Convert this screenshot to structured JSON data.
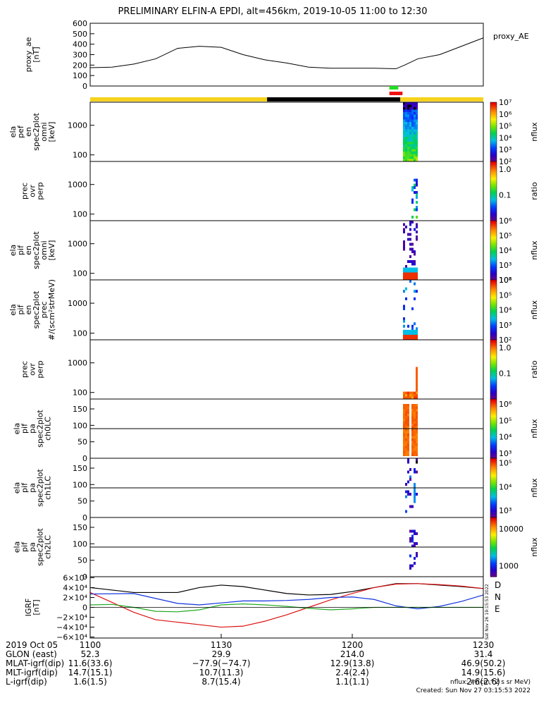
{
  "title": "PRELIMINARY ELFIN-A EPDI, alt=456km, 2019-10-05 11:00 to 12:30",
  "colors": {
    "orbit_day": "#f5d21e",
    "orbit_night": "#000000",
    "marker_green": "#22dd22",
    "marker_red": "#ee1111",
    "bx_color": "#dd1111",
    "by_color": "#1133dd",
    "bz_color": "#22aa22",
    "bt_color": "#000000"
  },
  "chart_data": [
    {
      "type": "line",
      "id": "proxy_ae",
      "ylabel_lines": [
        "proxy_ae",
        "[nT]"
      ],
      "legend": "proxy_AE",
      "ylim": [
        0,
        600
      ],
      "yticks": [
        "0",
        "100",
        "200",
        "300",
        "400",
        "500",
        "600"
      ],
      "x": [
        0,
        5,
        10,
        15,
        20,
        25,
        30,
        35,
        40,
        45,
        50,
        55,
        60,
        65,
        70,
        72,
        75,
        80,
        85,
        90
      ],
      "y": [
        175,
        180,
        210,
        260,
        360,
        380,
        370,
        300,
        250,
        220,
        180,
        170,
        170,
        170,
        165,
        200,
        260,
        300,
        380,
        460
      ]
    },
    {
      "type": "heatmap",
      "id": "pef_en",
      "ylabel_lines": [
        "ela",
        "pef",
        "en",
        "spec2plot",
        "omni",
        "[keV]"
      ],
      "yscale": "log",
      "ylim": [
        60,
        6000
      ],
      "yticks": [
        "100",
        "1000"
      ],
      "colorbar": {
        "label": "nflux",
        "ticks": [
          "10²",
          "10³",
          "10⁴",
          "10⁵",
          "10⁶",
          "10⁷"
        ],
        "range_log10": [
          2,
          7
        ]
      }
    },
    {
      "type": "heatmap",
      "id": "pef_ratio",
      "ylabel_lines": [
        "prec",
        "ovr",
        "perp"
      ],
      "yscale": "log",
      "ylim": [
        60,
        6000
      ],
      "yticks": [
        "100",
        "1000"
      ],
      "colorbar": {
        "label": "ratio",
        "ticks": [
          "0.1",
          "1.0"
        ],
        "range_log10": [
          -2,
          0.3
        ]
      }
    },
    {
      "type": "heatmap",
      "id": "pif_en",
      "ylabel_lines": [
        "ela",
        "pif",
        "en",
        "spec2plot",
        "omni",
        "[keV]"
      ],
      "yscale": "log",
      "ylim": [
        60,
        6000
      ],
      "yticks": [
        "100",
        "1000"
      ],
      "colorbar": {
        "label": "nflux",
        "ticks": [
          "10²",
          "10³",
          "10⁴",
          "10⁵",
          "10⁶"
        ],
        "range_log10": [
          2,
          6
        ]
      }
    },
    {
      "type": "heatmap",
      "id": "pif_prec",
      "ylabel_lines": [
        "ela",
        "pif",
        "en",
        "spec2plot",
        "prec",
        "#/(scm²strMeV)"
      ],
      "yscale": "log",
      "ylim": [
        60,
        6000
      ],
      "yticks": [
        "100",
        "1000"
      ],
      "colorbar": {
        "label": "nflux",
        "ticks": [
          "10²",
          "10³",
          "10⁴",
          "10⁵",
          "10⁶"
        ],
        "range_log10": [
          2,
          6
        ]
      }
    },
    {
      "type": "heatmap",
      "id": "pif_ratio",
      "ylabel_lines": [
        "prec",
        "ovr",
        "perp"
      ],
      "yscale": "log",
      "ylim": [
        60,
        6000
      ],
      "yticks": [
        "100",
        "1000"
      ],
      "colorbar": {
        "label": "ratio",
        "ticks": [
          "0.1",
          "1.0"
        ],
        "range_log10": [
          -2,
          0.3
        ]
      }
    },
    {
      "type": "heatmap",
      "id": "pa_ch0",
      "ylabel_lines": [
        "ela",
        "pif",
        "pa",
        "spec2plot",
        "ch0LC"
      ],
      "ylim": [
        0,
        180
      ],
      "yticks": [
        "0",
        "50",
        "100",
        "150"
      ],
      "colorbar": {
        "label": "nflux",
        "ticks": [
          "10³",
          "10⁴",
          "10⁵",
          "10⁶"
        ],
        "range_log10": [
          2.7,
          6.3
        ]
      }
    },
    {
      "type": "heatmap",
      "id": "pa_ch1",
      "ylabel_lines": [
        "ela",
        "pif",
        "pa",
        "spec2plot",
        "ch1LC"
      ],
      "ylim": [
        0,
        180
      ],
      "yticks": [
        "0",
        "50",
        "100",
        "150"
      ],
      "colorbar": {
        "label": "nflux",
        "ticks": [
          "10³",
          "10⁴",
          "10⁵"
        ],
        "range_log10": [
          2.7,
          5.2
        ]
      }
    },
    {
      "type": "heatmap",
      "id": "pa_ch2",
      "ylabel_lines": [
        "ela",
        "pif",
        "pa",
        "spec2plot",
        "ch2LC"
      ],
      "ylim": [
        0,
        180
      ],
      "yticks": [
        "0",
        "50",
        "100",
        "150"
      ],
      "colorbar": {
        "label": "nflux",
        "ticks": [
          "1000",
          "10000"
        ],
        "range_log10": [
          2.7,
          4.3
        ]
      }
    },
    {
      "type": "line",
      "id": "igrf",
      "ylabel_lines": [
        "IGRF",
        "[nT]"
      ],
      "ylim": [
        -62000,
        62000
      ],
      "yticks": [
        "−6×10⁴",
        "−4×10⁴",
        "−2×10⁴",
        "0",
        "2×10⁴",
        "4×10⁴",
        "6×10⁴"
      ],
      "legend_letters": [
        "D",
        "N",
        "E"
      ],
      "series": [
        {
          "key": "bt",
          "x": [
            0,
            10,
            20,
            25,
            30,
            35,
            40,
            45,
            50,
            55,
            60,
            65,
            70,
            75,
            80,
            85,
            90
          ],
          "y": [
            40000,
            30000,
            30000,
            40000,
            45000,
            42000,
            35000,
            28000,
            25000,
            26000,
            32000,
            40000,
            48000,
            48000,
            45000,
            42000,
            38000
          ]
        },
        {
          "key": "bx",
          "x": [
            0,
            5,
            10,
            15,
            20,
            25,
            30,
            35,
            40,
            45,
            50,
            55,
            60,
            65,
            70,
            75,
            80,
            85,
            90
          ],
          "y": [
            30000,
            10000,
            -10000,
            -25000,
            -30000,
            -35000,
            -40000,
            -38000,
            -28000,
            -15000,
            0,
            15000,
            28000,
            40000,
            47000,
            48000,
            46000,
            43000,
            38000
          ]
        },
        {
          "key": "by",
          "x": [
            0,
            10,
            15,
            20,
            25,
            30,
            35,
            40,
            45,
            50,
            55,
            60,
            65,
            70,
            75,
            80,
            85,
            90
          ],
          "y": [
            27000,
            28000,
            18000,
            8000,
            5000,
            9000,
            13000,
            13000,
            14000,
            16000,
            20000,
            21000,
            16000,
            3000,
            -3000,
            2000,
            12000,
            25000
          ]
        },
        {
          "key": "bz",
          "x": [
            0,
            5,
            10,
            15,
            20,
            25,
            30,
            35,
            40,
            45,
            50,
            55,
            60,
            65,
            70,
            75,
            80,
            85,
            90
          ],
          "y": [
            5000,
            6000,
            0,
            -8000,
            -9000,
            -5000,
            5000,
            7000,
            5000,
            2000,
            -2000,
            -5000,
            -3000,
            0,
            0,
            0,
            0,
            0,
            0
          ]
        }
      ]
    }
  ],
  "orbit_bar": {
    "night_start_min": 40.5,
    "night_end_min": 71
  },
  "markers": {
    "start_min": 68.5,
    "end_min": 71.5
  },
  "x_axis": {
    "label_column": [
      "2019 Oct 05",
      "GLON (east)",
      "MLAT-igrf(dip)",
      "MLT-igrf(dip)",
      "L-igrf(dip)"
    ],
    "ticks": [
      {
        "t": "1100",
        "glon": "52.3",
        "mlat": "11.6(33.6)",
        "mlt": "14.7(15.1)",
        "l": "1.6(1.5)"
      },
      {
        "t": "1130",
        "glon": "29.9",
        "mlat": "−77.9(−74.7)",
        "mlt": "10.7(11.3)",
        "l": "8.7(15.4)"
      },
      {
        "t": "1200",
        "glon": "214.0",
        "mlat": "12.9(13.8)",
        "mlt": "2.4(2.4)",
        "l": "1.1(1.1)"
      },
      {
        "t": "1230",
        "glon": "31.4",
        "mlat": "46.9(50.2)",
        "mlt": "14.9(15.6)",
        "l": "2.6(2.6)"
      }
    ]
  },
  "footer": {
    "units": "nflux: #/(cm^2 s sr MeV)",
    "created": "Created: Sun Nov 27 03:15:53 2022",
    "side_stamp": "Sat Nov 26 19:15:53 2022"
  }
}
